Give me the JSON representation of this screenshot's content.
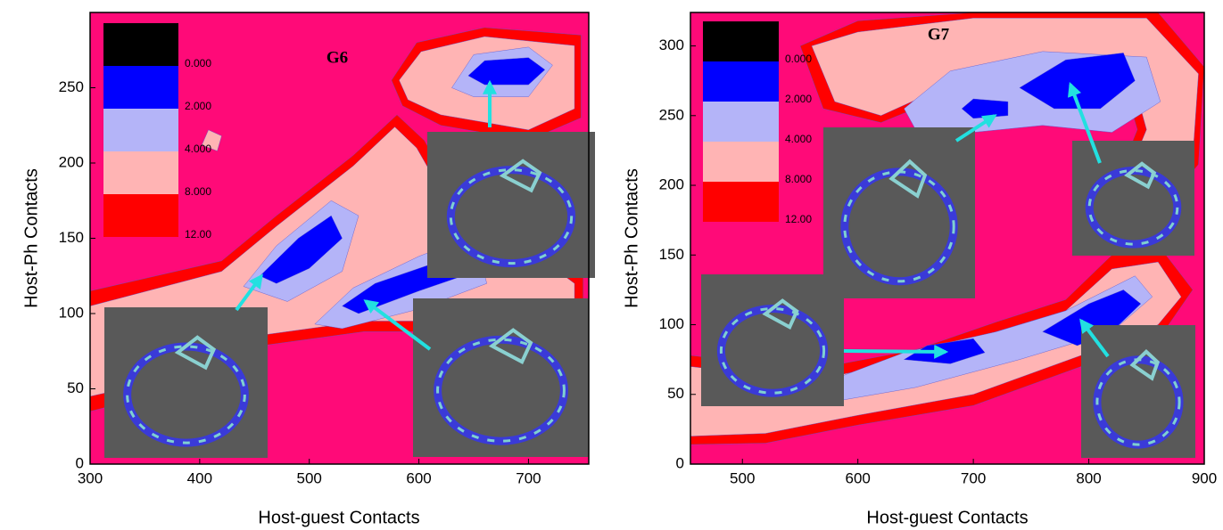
{
  "chart_data": [
    {
      "type": "contour",
      "title": "G6",
      "x_label": "Host-guest Contacts",
      "y_label": "Host-Ph Contacts",
      "xlim": [
        300,
        755
      ],
      "ylim": [
        0,
        300
      ],
      "xticks": [
        300,
        400,
        500,
        600,
        700
      ],
      "yticks": [
        0,
        50,
        100,
        150,
        200,
        250
      ],
      "background": "#ff0a78",
      "levels": [
        {
          "value": 0,
          "label": "0.000",
          "color": "#000000"
        },
        {
          "value": 2,
          "label": "2.000",
          "color": "#0000ff"
        },
        {
          "value": 4,
          "label": "4.000",
          "color": "#b4b4f8"
        },
        {
          "value": 8,
          "label": "8.000",
          "color": "#ffb4b4"
        },
        {
          "value": 12,
          "label": "12.00",
          "color": "#ff0000"
        }
      ],
      "regions": [
        {
          "level": 4,
          "points": [
            [
              300,
              35
            ],
            [
              300,
              115
            ],
            [
              420,
              135
            ],
            [
              470,
              165
            ],
            [
              540,
              205
            ],
            [
              580,
              232
            ],
            [
              605,
              215
            ],
            [
              650,
              158
            ],
            [
              710,
              148
            ],
            [
              750,
              125
            ],
            [
              750,
              95
            ],
            [
              650,
              88
            ],
            [
              550,
              88
            ],
            [
              450,
              78
            ],
            [
              380,
              50
            ]
          ]
        },
        {
          "level": 3,
          "points": [
            [
              300,
              45
            ],
            [
              300,
              105
            ],
            [
              420,
              128
            ],
            [
              470,
              158
            ],
            [
              540,
              198
            ],
            [
              578,
              224
            ],
            [
              598,
              210
            ],
            [
              645,
              150
            ],
            [
              705,
              140
            ],
            [
              742,
              120
            ],
            [
              742,
              100
            ],
            [
              650,
              95
            ],
            [
              550,
              95
            ],
            [
              450,
              85
            ],
            [
              380,
              58
            ]
          ]
        },
        {
          "level": 2,
          "points": [
            [
              440,
              118
            ],
            [
              470,
              145
            ],
            [
              520,
              175
            ],
            [
              545,
              165
            ],
            [
              530,
              128
            ],
            [
              480,
              108
            ]
          ]
        },
        {
          "level": 2,
          "points": [
            [
              505,
              93
            ],
            [
              540,
              117
            ],
            [
              600,
              138
            ],
            [
              650,
              152
            ],
            [
              662,
              120
            ],
            [
              600,
              103
            ],
            [
              530,
              90
            ]
          ]
        },
        {
          "level": 1,
          "points": [
            [
              455,
              125
            ],
            [
              490,
              150
            ],
            [
              520,
              165
            ],
            [
              530,
              150
            ],
            [
              500,
              130
            ],
            [
              470,
              120
            ]
          ]
        },
        {
          "level": 1,
          "points": [
            [
              530,
              105
            ],
            [
              560,
              120
            ],
            [
              620,
              135
            ],
            [
              640,
              125
            ],
            [
              600,
              115
            ],
            [
              545,
              100
            ]
          ]
        },
        {
          "level": 4,
          "points": [
            [
              575,
              255
            ],
            [
              598,
              280
            ],
            [
              660,
              290
            ],
            [
              748,
              285
            ],
            [
              748,
              230
            ],
            [
              700,
              215
            ],
            [
              620,
              225
            ],
            [
              585,
              238
            ]
          ]
        },
        {
          "level": 3,
          "points": [
            [
              582,
              255
            ],
            [
              602,
              274
            ],
            [
              660,
              284
            ],
            [
              742,
              278
            ],
            [
              742,
              236
            ],
            [
              700,
              222
            ],
            [
              620,
              232
            ],
            [
              590,
              242
            ]
          ]
        },
        {
          "level": 2,
          "points": [
            [
              630,
              250
            ],
            [
              650,
              272
            ],
            [
              700,
              277
            ],
            [
              722,
              265
            ],
            [
              700,
              244
            ],
            [
              650,
              244
            ]
          ]
        },
        {
          "level": 1,
          "points": [
            [
              645,
              258
            ],
            [
              660,
              268
            ],
            [
              700,
              270
            ],
            [
              715,
              262
            ],
            [
              700,
              252
            ],
            [
              660,
              252
            ]
          ]
        },
        {
          "level": 3,
          "points": [
            [
              402,
              212
            ],
            [
              408,
              222
            ],
            [
              420,
              218
            ],
            [
              416,
              208
            ]
          ]
        }
      ]
    },
    {
      "type": "contour",
      "title": "G7",
      "x_label": "Host-guest Contacts",
      "y_label": "Host-Ph Contacts",
      "xlim": [
        455,
        900
      ],
      "ylim": [
        0,
        324
      ],
      "xticks": [
        500,
        600,
        700,
        800,
        900
      ],
      "yticks": [
        0,
        50,
        100,
        150,
        200,
        250,
        300
      ],
      "background": "#ff0a78",
      "levels": [
        {
          "value": 0,
          "label": "0.000",
          "color": "#000000"
        },
        {
          "value": 2,
          "label": "2.000",
          "color": "#0000ff"
        },
        {
          "value": 4,
          "label": "4.000",
          "color": "#b4b4f8"
        },
        {
          "value": 8,
          "label": "8.000",
          "color": "#ffb4b4"
        },
        {
          "value": 12,
          "label": "12.00",
          "color": "#ff0000"
        }
      ],
      "regions": [
        {
          "level": 4,
          "points": [
            [
              455,
              14
            ],
            [
              455,
              78
            ],
            [
              560,
              68
            ],
            [
              650,
              82
            ],
            [
              720,
              102
            ],
            [
              780,
              118
            ],
            [
              820,
              150
            ],
            [
              865,
              152
            ],
            [
              890,
              125
            ],
            [
              865,
              95
            ],
            [
              800,
              72
            ],
            [
              700,
              42
            ],
            [
              600,
              28
            ],
            [
              520,
              15
            ]
          ]
        },
        {
          "level": 3,
          "points": [
            [
              455,
              20
            ],
            [
              455,
              70
            ],
            [
              560,
              60
            ],
            [
              650,
              75
            ],
            [
              720,
              95
            ],
            [
              780,
              110
            ],
            [
              820,
              140
            ],
            [
              860,
              145
            ],
            [
              880,
              120
            ],
            [
              860,
              100
            ],
            [
              800,
              80
            ],
            [
              700,
              50
            ],
            [
              600,
              35
            ],
            [
              520,
              22
            ]
          ]
        },
        {
          "level": 4,
          "points": [
            [
              550,
              300
            ],
            [
              600,
              318
            ],
            [
              700,
              324
            ],
            [
              860,
              324
            ],
            [
              900,
              285
            ],
            [
              895,
              215
            ],
            [
              875,
              195
            ],
            [
              852,
              172
            ],
            [
              820,
              152
            ],
            [
              795,
              170
            ],
            [
              825,
              205
            ],
            [
              842,
              240
            ],
            [
              832,
              268
            ],
            [
              780,
              282
            ],
            [
              700,
              272
            ],
            [
              620,
              245
            ],
            [
              570,
              255
            ]
          ]
        },
        {
          "level": 3,
          "points": [
            [
              560,
              300
            ],
            [
              600,
              310
            ],
            [
              700,
              320
            ],
            [
              850,
              320
            ],
            [
              895,
              280
            ],
            [
              890,
              220
            ],
            [
              870,
              200
            ],
            [
              850,
              180
            ],
            [
              820,
              160
            ],
            [
              800,
              170
            ],
            [
              830,
              200
            ],
            [
              850,
              240
            ],
            [
              840,
              270
            ],
            [
              780,
              290
            ],
            [
              700,
              280
            ],
            [
              620,
              250
            ],
            [
              580,
              260
            ]
          ]
        },
        {
          "level": 2,
          "points": [
            [
              640,
              255
            ],
            [
              680,
              282
            ],
            [
              760,
              296
            ],
            [
              850,
              292
            ],
            [
              862,
              260
            ],
            [
              820,
              238
            ],
            [
              760,
              243
            ],
            [
              700,
              238
            ],
            [
              650,
              240
            ]
          ]
        },
        {
          "level": 1,
          "points": [
            [
              690,
              255
            ],
            [
              700,
              262
            ],
            [
              730,
              260
            ],
            [
              730,
              250
            ],
            [
              700,
              248
            ]
          ]
        },
        {
          "level": 1,
          "points": [
            [
              740,
              270
            ],
            [
              780,
              290
            ],
            [
              830,
              295
            ],
            [
              840,
              275
            ],
            [
              810,
              255
            ],
            [
              770,
              255
            ]
          ]
        },
        {
          "level": 2,
          "points": [
            [
              560,
              55
            ],
            [
              640,
              80
            ],
            [
              720,
              95
            ],
            [
              780,
              110
            ],
            [
              840,
              135
            ],
            [
              855,
              120
            ],
            [
              820,
              95
            ],
            [
              740,
              75
            ],
            [
              650,
              55
            ],
            [
              580,
              45
            ]
          ]
        },
        {
          "level": 1,
          "points": [
            [
              760,
              95
            ],
            [
              800,
              115
            ],
            [
              830,
              125
            ],
            [
              845,
              115
            ],
            [
              820,
              95
            ],
            [
              790,
              85
            ]
          ]
        },
        {
          "level": 1,
          "points": [
            [
              640,
              75
            ],
            [
              660,
              85
            ],
            [
              700,
              90
            ],
            [
              710,
              80
            ],
            [
              680,
              72
            ]
          ]
        }
      ]
    }
  ]
}
